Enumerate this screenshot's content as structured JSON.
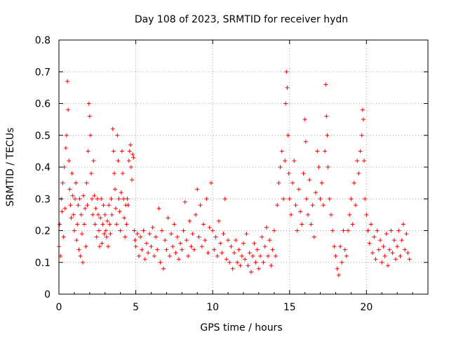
{
  "chart_data": {
    "type": "scatter",
    "title": "Day 108 of 2023, SRMTID for receiver hydn",
    "xlabel": "GPS time / hours",
    "ylabel": "SRMTID / TECUs",
    "xlim": [
      0,
      24
    ],
    "ylim": [
      0,
      0.8
    ],
    "xticks": [
      0,
      5,
      10,
      15,
      20
    ],
    "xtick_labels": [
      "0",
      "5",
      "10",
      "15",
      "20"
    ],
    "yticks": [
      0,
      0.1,
      0.2,
      0.3,
      0.4,
      0.5,
      0.6,
      0.7,
      0.8
    ],
    "ytick_labels": [
      "0",
      "0.1",
      "0.2",
      "0.3",
      "0.4",
      "0.5",
      "0.6",
      "0.7",
      "0.8"
    ],
    "grid": true,
    "marker": "+",
    "color": "#ff0000",
    "series": [
      {
        "name": "SRMTID",
        "points": [
          [
            0.0,
            0.15
          ],
          [
            0.05,
            0.22
          ],
          [
            0.1,
            0.12
          ],
          [
            0.15,
            0.3
          ],
          [
            0.2,
            0.26
          ],
          [
            0.25,
            0.35
          ],
          [
            0.3,
            0.18
          ],
          [
            0.35,
            0.4
          ],
          [
            0.4,
            0.27
          ],
          [
            0.45,
            0.46
          ],
          [
            0.5,
            0.5
          ],
          [
            0.55,
            0.67
          ],
          [
            0.6,
            0.58
          ],
          [
            0.65,
            0.42
          ],
          [
            0.7,
            0.33
          ],
          [
            0.75,
            0.28
          ],
          [
            0.8,
            0.24
          ],
          [
            0.85,
            0.38
          ],
          [
            0.9,
            0.31
          ],
          [
            0.95,
            0.25
          ],
          [
            1.0,
            0.2
          ],
          [
            1.05,
            0.3
          ],
          [
            1.1,
            0.35
          ],
          [
            1.15,
            0.17
          ],
          [
            1.2,
            0.22
          ],
          [
            1.25,
            0.28
          ],
          [
            1.3,
            0.14
          ],
          [
            1.35,
            0.3
          ],
          [
            1.4,
            0.12
          ],
          [
            1.45,
            0.25
          ],
          [
            1.5,
            0.19
          ],
          [
            1.55,
            0.1
          ],
          [
            1.6,
            0.31
          ],
          [
            1.65,
            0.22
          ],
          [
            1.7,
            0.27
          ],
          [
            1.75,
            0.15
          ],
          [
            1.8,
            0.35
          ],
          [
            1.85,
            0.28
          ],
          [
            1.9,
            0.45
          ],
          [
            1.95,
            0.6
          ],
          [
            2.0,
            0.56
          ],
          [
            2.05,
            0.5
          ],
          [
            2.1,
            0.38
          ],
          [
            2.15,
            0.3
          ],
          [
            2.2,
            0.25
          ],
          [
            2.25,
            0.42
          ],
          [
            2.3,
            0.31
          ],
          [
            2.35,
            0.22
          ],
          [
            2.4,
            0.27
          ],
          [
            2.45,
            0.18
          ],
          [
            2.5,
            0.3
          ],
          [
            2.55,
            0.25
          ],
          [
            2.6,
            0.2
          ],
          [
            2.65,
            0.15
          ],
          [
            2.7,
            0.24
          ],
          [
            2.75,
            0.3
          ],
          [
            2.8,
            0.16
          ],
          [
            2.85,
            0.22
          ],
          [
            2.9,
            0.28
          ],
          [
            2.95,
            0.19
          ],
          [
            3.0,
            0.25
          ],
          [
            3.05,
            0.2
          ],
          [
            3.1,
            0.18
          ],
          [
            3.15,
            0.23
          ],
          [
            3.2,
            0.15
          ],
          [
            3.25,
            0.28
          ],
          [
            3.3,
            0.22
          ],
          [
            3.35,
            0.19
          ],
          [
            3.4,
            0.3
          ],
          [
            3.45,
            0.25
          ],
          [
            3.5,
            0.52
          ],
          [
            3.55,
            0.45
          ],
          [
            3.6,
            0.38
          ],
          [
            3.65,
            0.33
          ],
          [
            3.7,
            0.27
          ],
          [
            3.75,
            0.22
          ],
          [
            3.8,
            0.5
          ],
          [
            3.85,
            0.42
          ],
          [
            3.9,
            0.3
          ],
          [
            3.95,
            0.26
          ],
          [
            4.0,
            0.2
          ],
          [
            4.05,
            0.32
          ],
          [
            4.1,
            0.45
          ],
          [
            4.15,
            0.38
          ],
          [
            4.2,
            0.3
          ],
          [
            4.25,
            0.24
          ],
          [
            4.3,
            0.18
          ],
          [
            4.35,
            0.28
          ],
          [
            4.4,
            0.22
          ],
          [
            4.45,
            0.3
          ],
          [
            4.5,
            0.28
          ],
          [
            4.55,
            0.42
          ],
          [
            4.6,
            0.45
          ],
          [
            4.65,
            0.47
          ],
          [
            4.7,
            0.4
          ],
          [
            4.75,
            0.36
          ],
          [
            4.8,
            0.44
          ],
          [
            4.85,
            0.43
          ],
          [
            4.9,
            0.2
          ],
          [
            4.95,
            0.17
          ],
          [
            5.0,
            0.15
          ],
          [
            5.1,
            0.19
          ],
          [
            5.2,
            0.12
          ],
          [
            5.3,
            0.18
          ],
          [
            5.4,
            0.14
          ],
          [
            5.5,
            0.2
          ],
          [
            5.6,
            0.11
          ],
          [
            5.7,
            0.16
          ],
          [
            5.8,
            0.13
          ],
          [
            5.9,
            0.19
          ],
          [
            6.0,
            0.15
          ],
          [
            6.1,
            0.21
          ],
          [
            6.2,
            0.12
          ],
          [
            6.3,
            0.18
          ],
          [
            6.4,
            0.14
          ],
          [
            6.5,
            0.27
          ],
          [
            6.6,
            0.1
          ],
          [
            6.7,
            0.2
          ],
          [
            6.8,
            0.08
          ],
          [
            6.9,
            0.17
          ],
          [
            7.0,
            0.14
          ],
          [
            7.1,
            0.24
          ],
          [
            7.2,
            0.12
          ],
          [
            7.3,
            0.19
          ],
          [
            7.4,
            0.15
          ],
          [
            7.5,
            0.22
          ],
          [
            7.6,
            0.13
          ],
          [
            7.7,
            0.18
          ],
          [
            7.8,
            0.11
          ],
          [
            7.9,
            0.16
          ],
          [
            8.0,
            0.14
          ],
          [
            8.1,
            0.2
          ],
          [
            8.2,
            0.29
          ],
          [
            8.3,
            0.17
          ],
          [
            8.4,
            0.12
          ],
          [
            8.5,
            0.23
          ],
          [
            8.6,
            0.15
          ],
          [
            8.7,
            0.19
          ],
          [
            8.8,
            0.14
          ],
          [
            8.9,
            0.25
          ],
          [
            9.0,
            0.33
          ],
          [
            9.1,
            0.18
          ],
          [
            9.2,
            0.28
          ],
          [
            9.3,
            0.15
          ],
          [
            9.4,
            0.22
          ],
          [
            9.5,
            0.17
          ],
          [
            9.6,
            0.3
          ],
          [
            9.7,
            0.13
          ],
          [
            9.8,
            0.21
          ],
          [
            9.9,
            0.35
          ],
          [
            10.0,
            0.2
          ],
          [
            10.1,
            0.14
          ],
          [
            10.2,
            0.18
          ],
          [
            10.3,
            0.12
          ],
          [
            10.4,
            0.23
          ],
          [
            10.5,
            0.16
          ],
          [
            10.6,
            0.13
          ],
          [
            10.7,
            0.19
          ],
          [
            10.8,
            0.3
          ],
          [
            10.9,
            0.11
          ],
          [
            11.0,
            0.17
          ],
          [
            11.1,
            0.1
          ],
          [
            11.2,
            0.15
          ],
          [
            11.3,
            0.08
          ],
          [
            11.4,
            0.13
          ],
          [
            11.5,
            0.17
          ],
          [
            11.6,
            0.1
          ],
          [
            11.7,
            0.14
          ],
          [
            11.8,
            0.09
          ],
          [
            11.9,
            0.12
          ],
          [
            12.0,
            0.16
          ],
          [
            12.1,
            0.11
          ],
          [
            12.2,
            0.19
          ],
          [
            12.3,
            0.09
          ],
          [
            12.4,
            0.13
          ],
          [
            12.5,
            0.07
          ],
          [
            12.6,
            0.12
          ],
          [
            12.7,
            0.16
          ],
          [
            12.8,
            0.1
          ],
          [
            12.9,
            0.14
          ],
          [
            13.0,
            0.08
          ],
          [
            13.1,
            0.12
          ],
          [
            13.2,
            0.18
          ],
          [
            13.3,
            0.1
          ],
          [
            13.4,
            0.15
          ],
          [
            13.5,
            0.21
          ],
          [
            13.6,
            0.12
          ],
          [
            13.7,
            0.17
          ],
          [
            13.8,
            0.09
          ],
          [
            13.9,
            0.14
          ],
          [
            14.0,
            0.2
          ],
          [
            14.1,
            0.12
          ],
          [
            14.2,
            0.28
          ],
          [
            14.3,
            0.35
          ],
          [
            14.4,
            0.4
          ],
          [
            14.5,
            0.45
          ],
          [
            14.6,
            0.3
          ],
          [
            14.7,
            0.42
          ],
          [
            14.75,
            0.6
          ],
          [
            14.8,
            0.7
          ],
          [
            14.85,
            0.65
          ],
          [
            14.9,
            0.5
          ],
          [
            14.95,
            0.38
          ],
          [
            15.0,
            0.3
          ],
          [
            15.1,
            0.25
          ],
          [
            15.2,
            0.35
          ],
          [
            15.3,
            0.42
          ],
          [
            15.4,
            0.28
          ],
          [
            15.5,
            0.2
          ],
          [
            15.6,
            0.33
          ],
          [
            15.7,
            0.26
          ],
          [
            15.8,
            0.22
          ],
          [
            15.9,
            0.38
          ],
          [
            16.0,
            0.55
          ],
          [
            16.05,
            0.48
          ],
          [
            16.1,
            0.3
          ],
          [
            16.2,
            0.25
          ],
          [
            16.3,
            0.36
          ],
          [
            16.4,
            0.22
          ],
          [
            16.5,
            0.28
          ],
          [
            16.6,
            0.18
          ],
          [
            16.7,
            0.32
          ],
          [
            16.8,
            0.45
          ],
          [
            16.9,
            0.4
          ],
          [
            17.0,
            0.3
          ],
          [
            17.1,
            0.35
          ],
          [
            17.2,
            0.28
          ],
          [
            17.3,
            0.45
          ],
          [
            17.35,
            0.66
          ],
          [
            17.4,
            0.56
          ],
          [
            17.45,
            0.5
          ],
          [
            17.5,
            0.4
          ],
          [
            17.6,
            0.3
          ],
          [
            17.7,
            0.25
          ],
          [
            17.8,
            0.2
          ],
          [
            17.9,
            0.15
          ],
          [
            18.0,
            0.12
          ],
          [
            18.1,
            0.08
          ],
          [
            18.2,
            0.06
          ],
          [
            18.3,
            0.15
          ],
          [
            18.4,
            0.1
          ],
          [
            18.5,
            0.2
          ],
          [
            18.6,
            0.14
          ],
          [
            18.7,
            0.12
          ],
          [
            18.8,
            0.2
          ],
          [
            18.9,
            0.25
          ],
          [
            19.0,
            0.3
          ],
          [
            19.1,
            0.22
          ],
          [
            19.2,
            0.35
          ],
          [
            19.3,
            0.28
          ],
          [
            19.4,
            0.42
          ],
          [
            19.5,
            0.38
          ],
          [
            19.6,
            0.45
          ],
          [
            19.7,
            0.5
          ],
          [
            19.75,
            0.58
          ],
          [
            19.8,
            0.55
          ],
          [
            19.85,
            0.42
          ],
          [
            19.9,
            0.3
          ],
          [
            20.0,
            0.25
          ],
          [
            20.1,
            0.2
          ],
          [
            20.2,
            0.16
          ],
          [
            20.3,
            0.22
          ],
          [
            20.4,
            0.13
          ],
          [
            20.5,
            0.18
          ],
          [
            20.6,
            0.11
          ],
          [
            20.7,
            0.2
          ],
          [
            20.8,
            0.14
          ],
          [
            20.9,
            0.17
          ],
          [
            21.0,
            0.1
          ],
          [
            21.1,
            0.15
          ],
          [
            21.2,
            0.12
          ],
          [
            21.3,
            0.19
          ],
          [
            21.4,
            0.09
          ],
          [
            21.5,
            0.14
          ],
          [
            21.6,
            0.2
          ],
          [
            21.7,
            0.13
          ],
          [
            21.8,
            0.17
          ],
          [
            21.9,
            0.11
          ],
          [
            22.0,
            0.15
          ],
          [
            22.1,
            0.2
          ],
          [
            22.2,
            0.12
          ],
          [
            22.3,
            0.17
          ],
          [
            22.4,
            0.22
          ],
          [
            22.5,
            0.14
          ],
          [
            22.6,
            0.19
          ],
          [
            22.7,
            0.13
          ],
          [
            22.8,
            0.11
          ]
        ]
      }
    ]
  }
}
